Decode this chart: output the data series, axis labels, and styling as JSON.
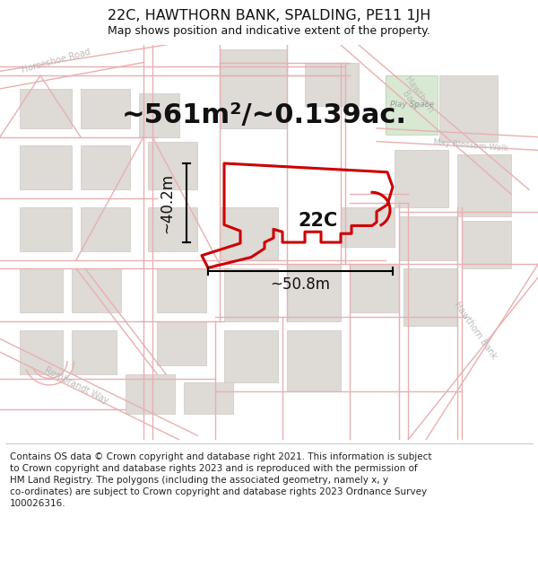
{
  "title": "22C, HAWTHORN BANK, SPALDING, PE11 1JH",
  "subtitle": "Map shows position and indicative extent of the property.",
  "area_text": "~561m²/~0.139ac.",
  "label": "22C",
  "dim_width": "~50.8m",
  "dim_height": "~40.2m",
  "footer": "Contains OS data © Crown copyright and database right 2021. This information is subject to Crown copyright and database rights 2023 and is reproduced with the permission of HM Land Registry. The polygons (including the associated geometry, namely x, y co-ordinates) are subject to Crown copyright and database rights 2023 Ordnance Survey 100026316.",
  "map_bg": "#f7f5f5",
  "road_line": "#e8b0b0",
  "building_color": "#dedad6",
  "building_edge": "#ccc8c4",
  "highlight_color": "#cc0000",
  "text_color": "#111111",
  "gray_text": "#bbbbbb",
  "pink_text": "#c8a0a0",
  "green_area": "#d8e8d0",
  "title_fontsize": 11.5,
  "subtitle_fontsize": 9,
  "area_fontsize": 22,
  "label_fontsize": 15,
  "footer_fontsize": 7.5,
  "dim_fontsize": 12,
  "map_label_fontsize": 7.5,
  "road_lw": 1.0
}
